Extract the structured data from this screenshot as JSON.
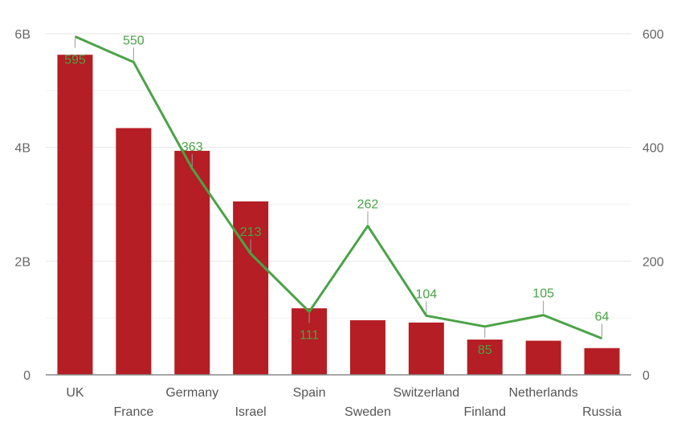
{
  "colors": {
    "bar": "#b41e24",
    "line": "#4aa346",
    "grid": "#e6e6e6",
    "axis": "#888888",
    "leader": "#999999"
  },
  "chart_data": {
    "type": "bar",
    "title": "",
    "xlabel": "",
    "ylabel": "",
    "y2label": "",
    "grid": true,
    "categories": [
      "UK",
      "France",
      "Germany",
      "Israel",
      "Spain",
      "Sweden",
      "Switzerland",
      "Finland",
      "Netherlands",
      "Russia"
    ],
    "ylim": [
      0,
      6000000000
    ],
    "y_ticks": [
      0,
      2000000000,
      4000000000,
      6000000000
    ],
    "y_tick_labels": [
      "0",
      "2B",
      "4B",
      "6B"
    ],
    "y2lim": [
      0,
      600
    ],
    "y2_ticks": [
      0,
      200,
      400,
      600
    ],
    "y2_tick_labels": [
      "0",
      "200",
      "400",
      "600"
    ],
    "series": [
      {
        "type": "bar",
        "axis": "left",
        "values": [
          5630000000,
          4340000000,
          3940000000,
          3050000000,
          1170000000,
          960000000,
          920000000,
          620000000,
          600000000,
          470000000
        ]
      },
      {
        "type": "line",
        "axis": "right",
        "values": [
          595,
          550,
          363,
          213,
          111,
          262,
          104,
          85,
          105,
          64
        ],
        "labels": [
          "595",
          "550",
          "363",
          "213",
          "111",
          "262",
          "104",
          "85",
          "105",
          "64"
        ]
      }
    ]
  }
}
